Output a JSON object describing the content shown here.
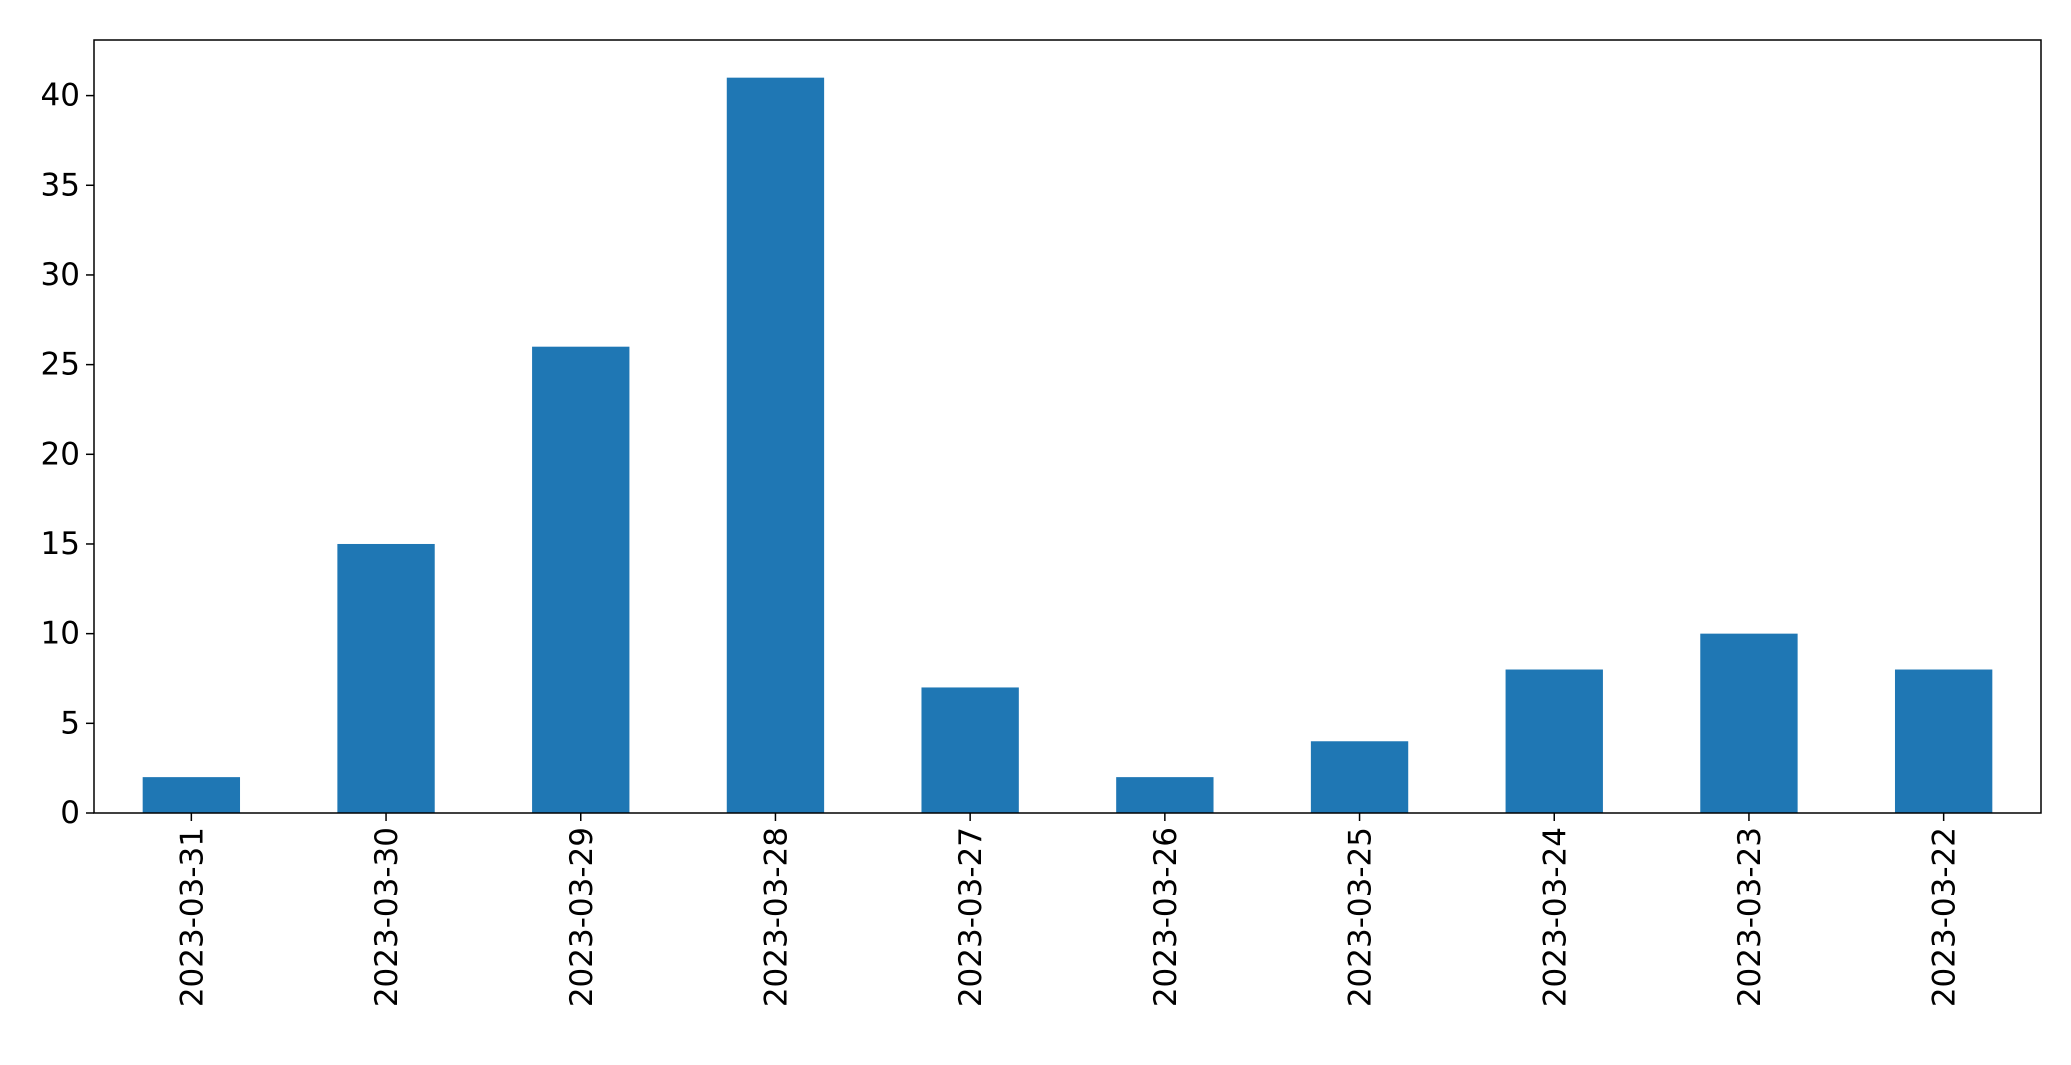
{
  "chart_data": {
    "type": "bar",
    "title": "",
    "xlabel": "",
    "ylabel": "",
    "categories": [
      "2023-03-31",
      "2023-03-30",
      "2023-03-29",
      "2023-03-28",
      "2023-03-27",
      "2023-03-26",
      "2023-03-25",
      "2023-03-24",
      "2023-03-23",
      "2023-03-22"
    ],
    "values": [
      2,
      15,
      26,
      41,
      7,
      2,
      4,
      8,
      10,
      8
    ],
    "ylim": [
      0,
      43.1
    ],
    "yticks": [
      0,
      5,
      10,
      15,
      20,
      25,
      30,
      35,
      40
    ],
    "grid": false,
    "legend": "none",
    "bar_color": "#1f77b4",
    "x_tick_rotation": "vertical"
  }
}
